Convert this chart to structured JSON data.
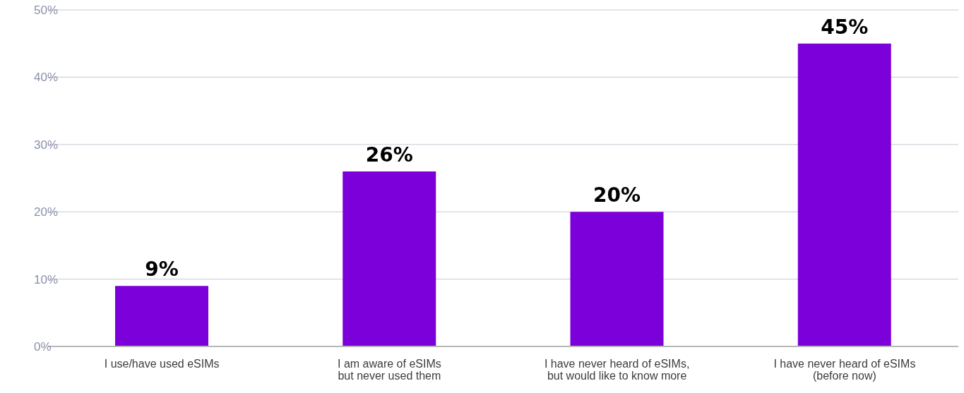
{
  "chart_data": {
    "type": "bar",
    "categories": [
      "I use/have used eSIMs",
      "I am aware of eSIMs\nbut never used them",
      "I have never heard of eSIMs,\nbut would like to know more",
      "I have never heard of eSIMs\n(before now)"
    ],
    "values": [
      9,
      26,
      20,
      45
    ],
    "value_labels": [
      "9%",
      "26%",
      "20%",
      "45%"
    ],
    "color": "#7c00d9",
    "ylim": [
      0,
      50
    ],
    "yticks": [
      {
        "value": 0,
        "label": "0%"
      },
      {
        "value": 10,
        "label": "10%"
      },
      {
        "value": 20,
        "label": "20%"
      },
      {
        "value": 30,
        "label": "30%"
      },
      {
        "value": 40,
        "label": "40%"
      },
      {
        "value": 50,
        "label": "50%"
      }
    ],
    "grid": "y"
  }
}
